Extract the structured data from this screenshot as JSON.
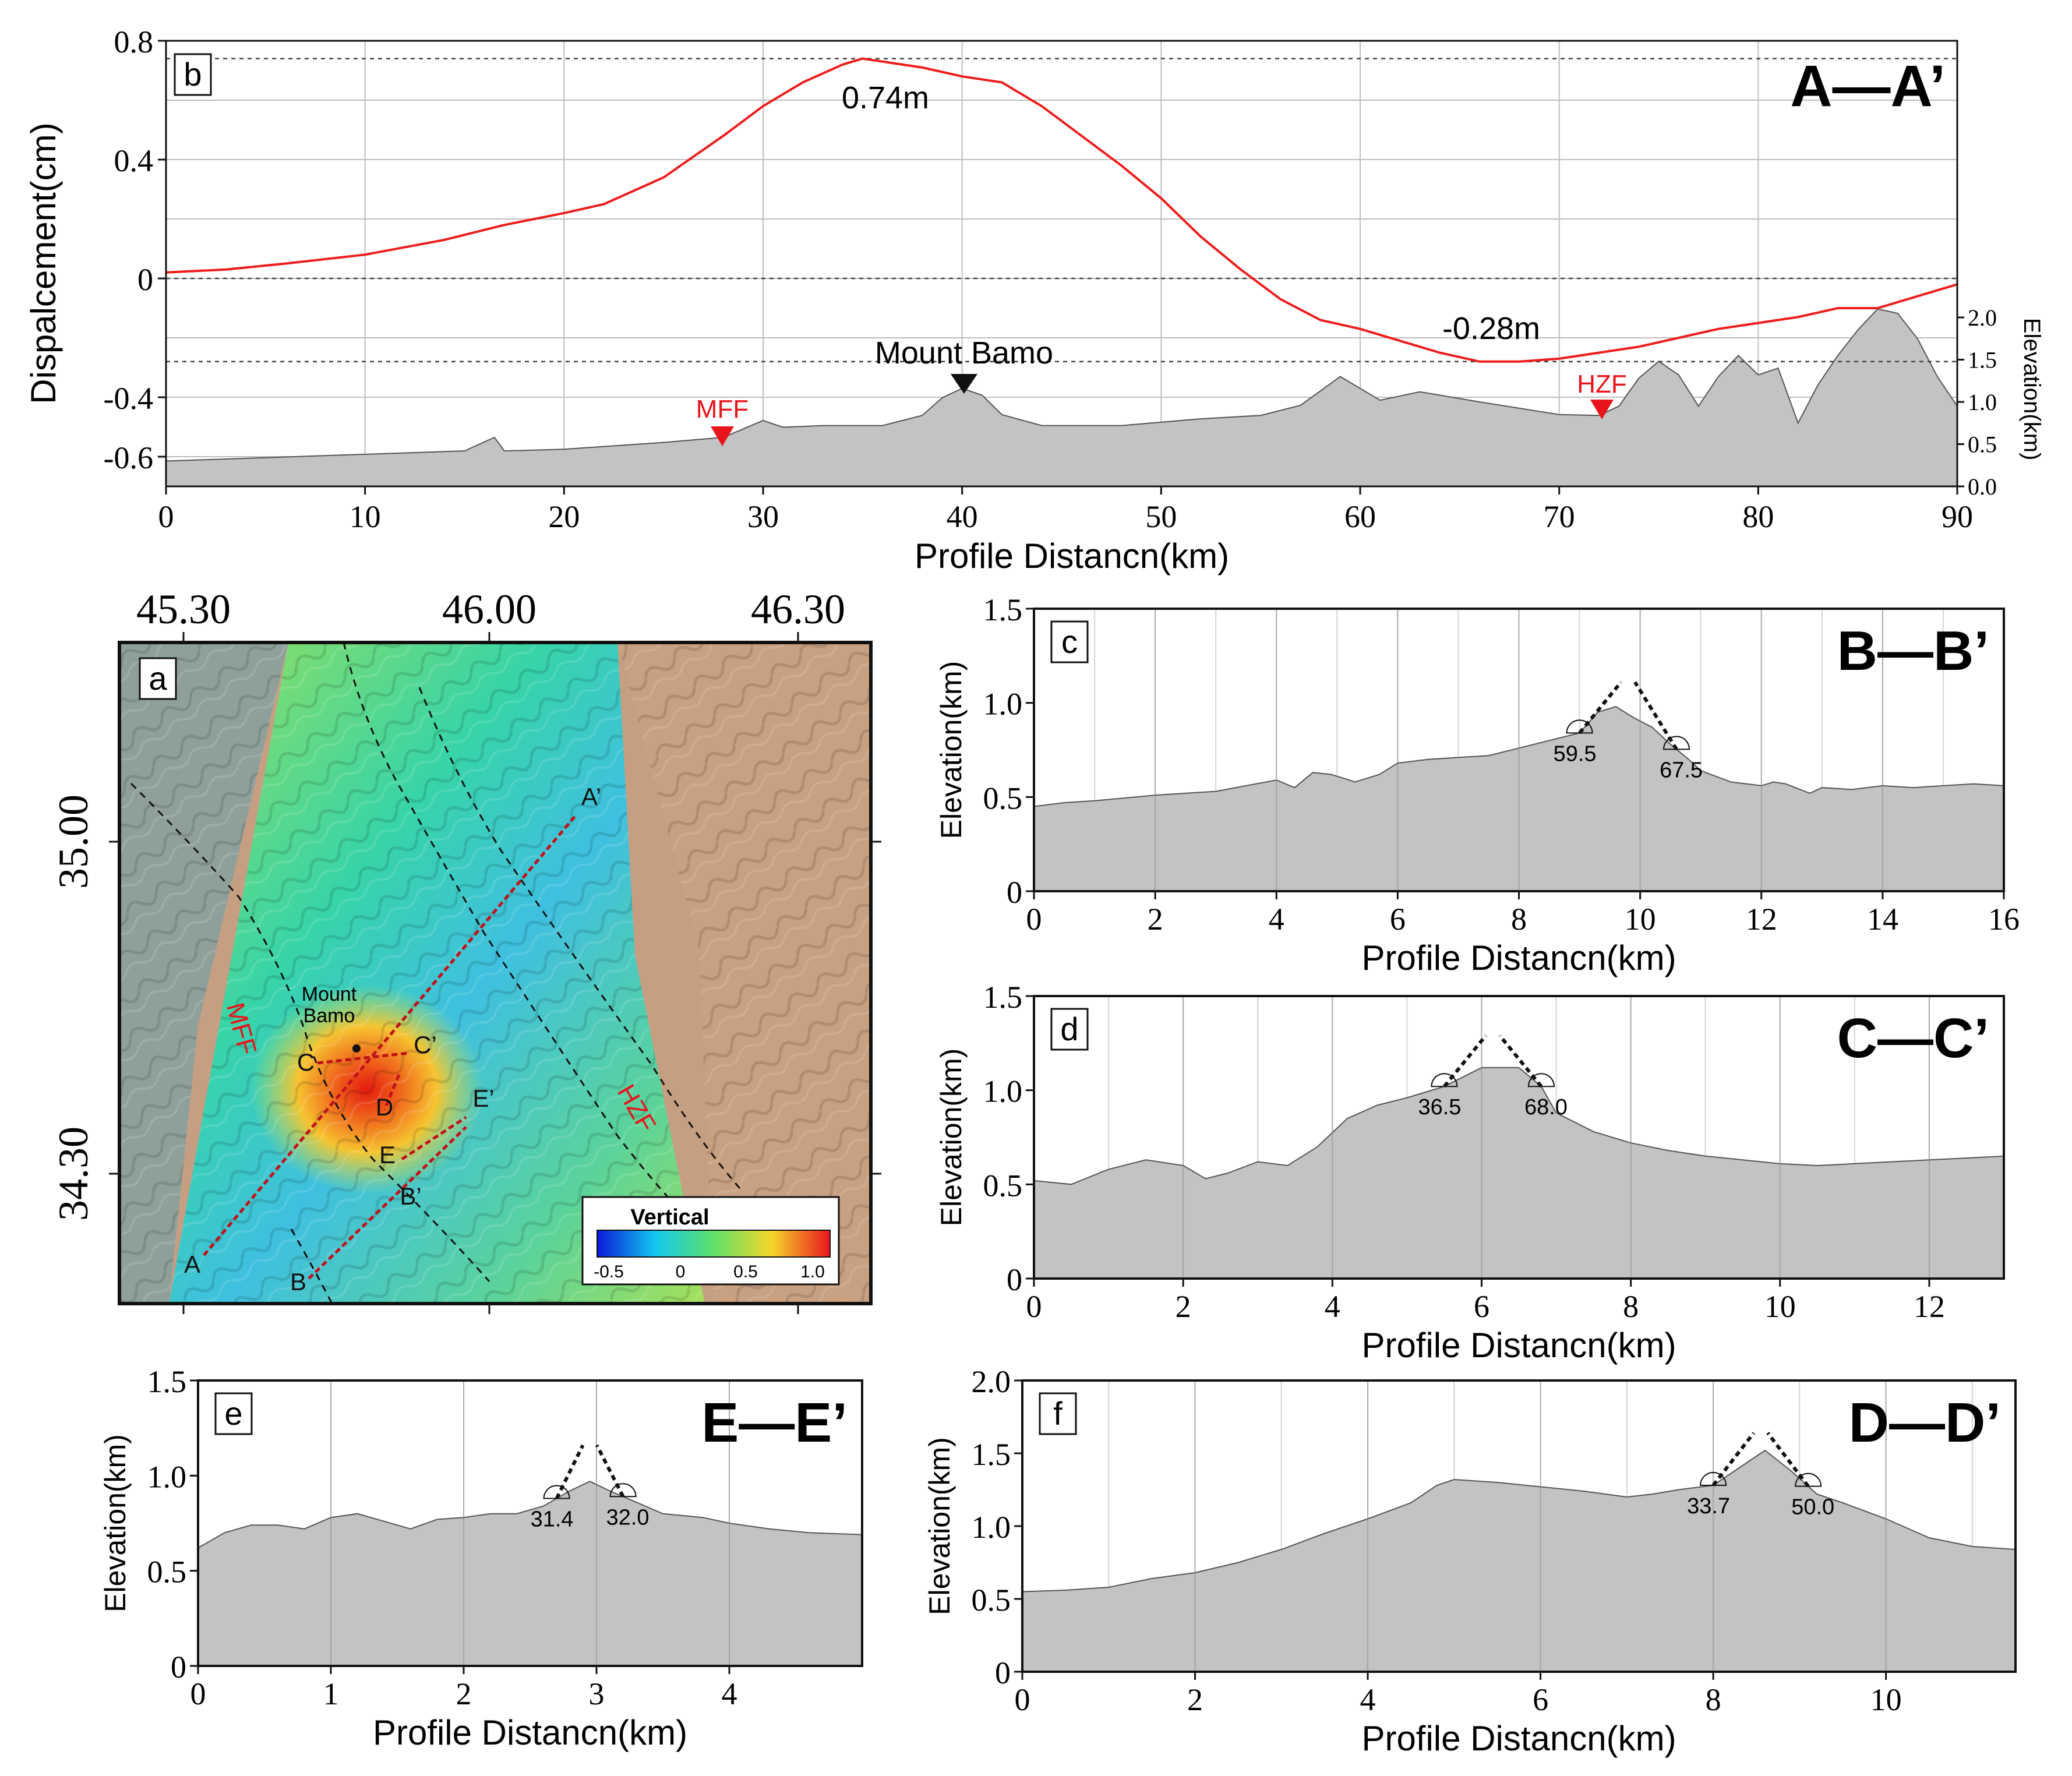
{
  "colors": {
    "displacement_line": "#ee1c1c",
    "terrain_fill": "#c3c3c3",
    "terrain_edge": "#555555",
    "fault_marker": "#e8141c",
    "peak_marker": "#111111",
    "grid": "#bdbdbd",
    "frame": "#111111"
  },
  "panel_b": {
    "letter": "b",
    "profile_label": "A—A’",
    "ylabel_left": "Dispalcement(cm)",
    "ylabel_right": "Elevation(km)",
    "xlabel": "Profile Distancn(km)",
    "ann_max": "0.74m",
    "ann_min": "-0.28m",
    "label_mount": "Mount Bamo",
    "label_mff": "MFF",
    "label_hzf": "HZF"
  },
  "panel_a": {
    "letter": "a",
    "lon_labels": [
      "45.30",
      "46.00",
      "46.30"
    ],
    "lat_labels": [
      "35.00",
      "34.30"
    ],
    "legend_title": "Vertical",
    "legend_ticks": [
      "-0.5",
      "0",
      "0.5",
      "1.0"
    ],
    "mount_label_1": "Mount",
    "mount_label_2": "Bamo",
    "fault_mff": "MFF",
    "fault_hzf": "HZF",
    "point_labels": [
      "A",
      "A’",
      "B",
      "B’",
      "C",
      "C’",
      "D",
      "E",
      "E’"
    ]
  },
  "panel_c": {
    "letter": "c",
    "profile_label": "B—B’",
    "ylabel": "Elevation(km)",
    "xlabel": "Profile Distancn(km)",
    "angles": [
      "59.5",
      "67.5"
    ]
  },
  "panel_d": {
    "letter": "d",
    "profile_label": "C—C’",
    "ylabel": "Elevation(km)",
    "xlabel": "Profile Distancn(km)",
    "angles": [
      "36.5",
      "68.0"
    ]
  },
  "panel_e": {
    "letter": "e",
    "profile_label": "E—E’",
    "ylabel": "Elevation(km)",
    "xlabel": "Profile Distancn(km)",
    "angles": [
      "31.4",
      "32.0"
    ]
  },
  "panel_f": {
    "letter": "f",
    "profile_label": "D—D’",
    "ylabel": "Elevation(km)",
    "xlabel": "Profile Distancn(km)",
    "angles": [
      "33.7",
      "50.0"
    ]
  },
  "chart_data": [
    {
      "id": "b",
      "type": "line",
      "title": "A—A’",
      "xlabel": "Profile Distancn(km)",
      "ylabel": "Dispalcement(cm)",
      "y2label": "Elevation(km)",
      "xlim": [
        0,
        90
      ],
      "ylim": [
        -0.7,
        0.8
      ],
      "y2lim": [
        0,
        2.0
      ],
      "xticks": [
        0,
        10,
        20,
        30,
        40,
        50,
        60,
        70,
        80,
        90
      ],
      "yticks": [
        -0.6,
        -0.4,
        0,
        0.4,
        0.8
      ],
      "y2ticks": [
        0.0,
        0.5,
        1.0,
        1.5,
        2.0
      ],
      "reference_lines_y": [
        0.74,
        0,
        -0.28
      ],
      "grid": true,
      "series": [
        {
          "name": "Displacement",
          "axis": "left",
          "x": [
            0,
            3,
            6,
            10,
            14,
            17,
            20,
            22,
            25,
            28,
            30,
            32,
            34,
            35,
            36,
            38,
            40,
            42,
            44,
            46,
            48,
            50,
            52,
            54,
            56,
            58,
            60,
            62,
            64,
            66,
            68,
            70,
            72,
            74,
            76,
            78,
            80,
            82,
            84,
            86,
            88,
            90
          ],
          "y": [
            0.02,
            0.03,
            0.05,
            0.08,
            0.13,
            0.18,
            0.22,
            0.25,
            0.34,
            0.48,
            0.58,
            0.66,
            0.72,
            0.74,
            0.73,
            0.71,
            0.68,
            0.66,
            0.58,
            0.48,
            0.38,
            0.27,
            0.14,
            0.03,
            -0.07,
            -0.14,
            -0.17,
            -0.21,
            -0.25,
            -0.28,
            -0.28,
            -0.27,
            -0.25,
            -0.23,
            -0.2,
            -0.17,
            -0.15,
            -0.13,
            -0.1,
            -0.1,
            -0.06,
            -0.02
          ]
        },
        {
          "name": "Elevation",
          "axis": "right",
          "type": "area",
          "x": [
            0,
            5,
            10,
            15,
            16.5,
            17,
            20,
            25,
            28,
            30,
            31,
            33,
            36,
            38,
            39,
            40,
            41,
            42,
            44,
            48,
            52,
            55,
            57,
            59,
            61,
            63,
            66,
            70,
            72,
            73,
            74,
            75,
            76,
            77,
            78,
            79,
            80,
            81,
            82,
            83,
            84,
            85,
            86,
            87,
            88,
            89,
            90
          ],
          "y": [
            0.3,
            0.34,
            0.38,
            0.42,
            0.58,
            0.42,
            0.44,
            0.52,
            0.58,
            0.78,
            0.7,
            0.72,
            0.72,
            0.84,
            1.05,
            1.16,
            1.08,
            0.85,
            0.72,
            0.72,
            0.8,
            0.84,
            0.96,
            1.3,
            1.02,
            1.12,
            1.0,
            0.85,
            0.84,
            0.95,
            1.28,
            1.48,
            1.32,
            0.95,
            1.3,
            1.55,
            1.32,
            1.4,
            0.75,
            1.2,
            1.55,
            1.85,
            2.1,
            2.05,
            1.75,
            1.3,
            0.95
          ]
        }
      ],
      "annotations": [
        {
          "text": "0.74m",
          "x": 35,
          "y": 0.74
        },
        {
          "text": "-0.28m",
          "x": 66,
          "y": -0.28
        },
        {
          "text": "Mount Bamo",
          "x": 40
        },
        {
          "text": "MFF",
          "x": 28
        },
        {
          "text": "HZF",
          "x": 72
        }
      ]
    },
    {
      "id": "c",
      "type": "area",
      "title": "B—B’",
      "xlabel": "Profile Distancn(km)",
      "ylabel": "Elevation(km)",
      "xlim": [
        0,
        16
      ],
      "ylim": [
        0,
        1.5
      ],
      "xticks": [
        0,
        2,
        4,
        6,
        8,
        10,
        12,
        14,
        16
      ],
      "yticks": [
        0,
        0.5,
        1.0,
        1.5
      ],
      "x": [
        0,
        0.5,
        1,
        2,
        3,
        3.5,
        4,
        4.3,
        4.6,
        4.9,
        5.3,
        5.7,
        6,
        6.5,
        7,
        7.5,
        8,
        8.5,
        9,
        9.3,
        9.6,
        9.9,
        10.2,
        10.5,
        10.8,
        11,
        11.5,
        12,
        12.2,
        12.4,
        12.8,
        13,
        13.5,
        14,
        14.5,
        15,
        15.5,
        16
      ],
      "y": [
        0.45,
        0.47,
        0.48,
        0.51,
        0.53,
        0.56,
        0.59,
        0.55,
        0.63,
        0.62,
        0.58,
        0.62,
        0.68,
        0.7,
        0.71,
        0.72,
        0.76,
        0.8,
        0.84,
        0.95,
        0.98,
        0.92,
        0.87,
        0.78,
        0.7,
        0.64,
        0.58,
        0.56,
        0.58,
        0.57,
        0.52,
        0.55,
        0.54,
        0.56,
        0.55,
        0.56,
        0.57,
        0.56
      ],
      "angles": [
        {
          "label": "59.5",
          "x": 9.0
        },
        {
          "label": "67.5",
          "x": 10.6
        }
      ]
    },
    {
      "id": "d",
      "type": "area",
      "title": "C—C’",
      "xlabel": "Profile Distancn(km)",
      "ylabel": "Elevation(km)",
      "xlim": [
        0,
        13
      ],
      "ylim": [
        0,
        1.5
      ],
      "xticks": [
        0,
        2,
        4,
        6,
        8,
        10,
        12
      ],
      "yticks": [
        0,
        0.5,
        1.0,
        1.5
      ],
      "x": [
        0,
        0.5,
        1,
        1.5,
        2,
        2.3,
        2.6,
        3,
        3.4,
        3.8,
        4.2,
        4.6,
        5,
        5.5,
        6,
        6.5,
        6.8,
        7,
        7.5,
        8,
        8.5,
        9,
        9.5,
        10,
        10.5,
        11,
        11.5,
        12,
        12.5,
        13
      ],
      "y": [
        0.52,
        0.5,
        0.58,
        0.63,
        0.6,
        0.53,
        0.56,
        0.62,
        0.6,
        0.7,
        0.85,
        0.92,
        0.96,
        1.02,
        1.12,
        1.12,
        1.02,
        0.88,
        0.78,
        0.72,
        0.68,
        0.65,
        0.63,
        0.61,
        0.6,
        0.61,
        0.62,
        0.63,
        0.64,
        0.65
      ],
      "angles": [
        {
          "label": "36.5",
          "x": 5.5
        },
        {
          "label": "68.0",
          "x": 6.8
        }
      ]
    },
    {
      "id": "e",
      "type": "area",
      "title": "E—E’",
      "xlabel": "Profile Distancn(km)",
      "ylabel": "Elevation(km)",
      "xlim": [
        0,
        5
      ],
      "ylim": [
        0,
        1.5
      ],
      "xticks": [
        0,
        1,
        2,
        3,
        4
      ],
      "yticks": [
        0,
        0.5,
        1.0,
        1.5
      ],
      "x": [
        0,
        0.2,
        0.4,
        0.6,
        0.8,
        1,
        1.2,
        1.4,
        1.6,
        1.8,
        2,
        2.2,
        2.4,
        2.6,
        2.8,
        2.95,
        3.1,
        3.3,
        3.5,
        3.8,
        4,
        4.3,
        4.6,
        5
      ],
      "y": [
        0.62,
        0.7,
        0.74,
        0.74,
        0.72,
        0.78,
        0.8,
        0.76,
        0.72,
        0.77,
        0.78,
        0.8,
        0.8,
        0.84,
        0.92,
        0.97,
        0.92,
        0.86,
        0.8,
        0.78,
        0.75,
        0.72,
        0.7,
        0.69
      ],
      "angles": [
        {
          "label": "31.4",
          "x": 2.7
        },
        {
          "label": "32.0",
          "x": 3.2
        }
      ]
    },
    {
      "id": "f",
      "type": "area",
      "title": "D—D’",
      "xlabel": "Profile Distancn(km)",
      "ylabel": "Elevation(km)",
      "xlim": [
        0,
        11.5
      ],
      "ylim": [
        0,
        2.0
      ],
      "xticks": [
        0,
        2,
        4,
        6,
        8,
        10
      ],
      "yticks": [
        0,
        0.5,
        1.0,
        1.5,
        2.0
      ],
      "x": [
        0,
        0.5,
        1,
        1.5,
        2,
        2.5,
        3,
        3.5,
        4,
        4.5,
        4.8,
        5,
        5.5,
        6,
        6.5,
        7,
        7.3,
        7.6,
        8,
        8.3,
        8.6,
        8.9,
        9.2,
        9.5,
        10,
        10.5,
        11,
        11.5
      ],
      "y": [
        0.55,
        0.56,
        0.58,
        0.64,
        0.68,
        0.75,
        0.84,
        0.95,
        1.05,
        1.16,
        1.28,
        1.32,
        1.3,
        1.27,
        1.24,
        1.2,
        1.22,
        1.25,
        1.28,
        1.4,
        1.52,
        1.38,
        1.22,
        1.16,
        1.05,
        0.92,
        0.86,
        0.84
      ],
      "angles": [
        {
          "label": "33.7",
          "x": 8.0
        },
        {
          "label": "50.0",
          "x": 9.1
        }
      ]
    }
  ]
}
